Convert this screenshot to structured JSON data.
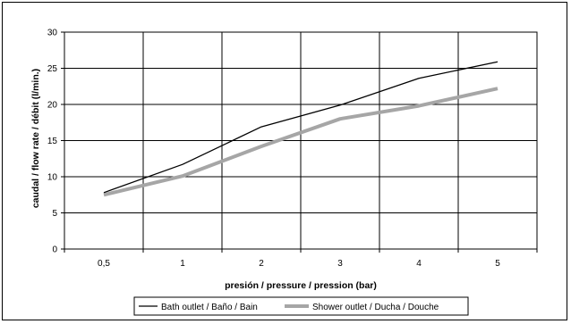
{
  "chart_data": {
    "type": "line",
    "categories": [
      "0,5",
      "1",
      "2",
      "3",
      "4",
      "5"
    ],
    "series": [
      {
        "name": "Bath outlet / Baño / Bain",
        "values": [
          7.8,
          11.7,
          16.9,
          19.9,
          23.6,
          25.9
        ],
        "color": "#000000"
      },
      {
        "name": "Shower outlet / Ducha / Douche",
        "values": [
          7.5,
          10.1,
          14.2,
          18.0,
          19.8,
          22.2
        ],
        "color": "#a6a6a6"
      }
    ],
    "xlabel": "presión / pressure / pression (bar)",
    "ylabel": "caudal / flow rate / débit (l/min.)",
    "ylim": [
      0,
      30
    ],
    "yticks": [
      "0",
      "5",
      "10",
      "15",
      "20",
      "25",
      "30"
    ],
    "grid": true,
    "legend_position": "bottom"
  }
}
